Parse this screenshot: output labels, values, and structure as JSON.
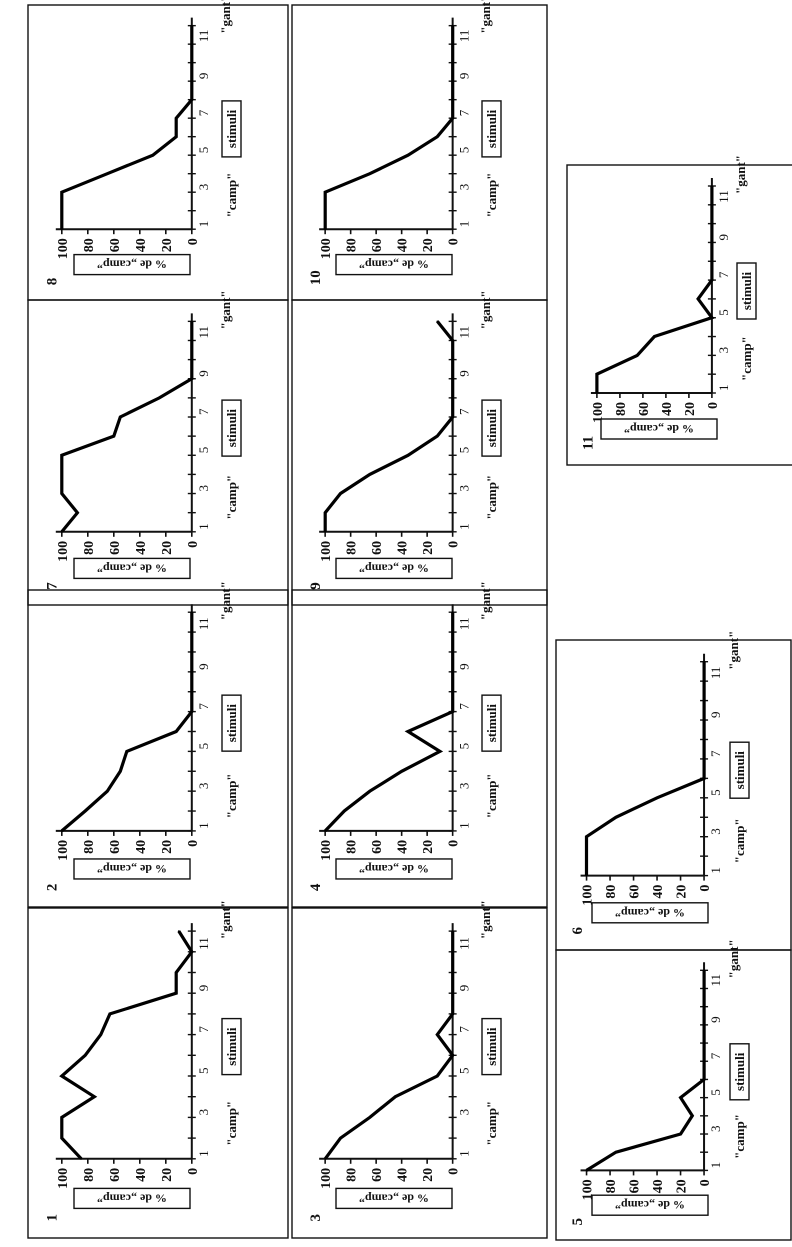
{
  "common": {
    "y_label": "% de „camp”",
    "x_label": "stimuli",
    "left_anchor": "\"camp\"",
    "right_anchor": "\"gant\"",
    "x_ticks": [
      "1",
      "3",
      "5",
      "7",
      "9",
      "11"
    ],
    "y_ticks": [
      "0",
      "20",
      "40",
      "60",
      "80",
      "100"
    ]
  },
  "chart_data": [
    {
      "type": "line",
      "panel": "1",
      "x": [
        1,
        2,
        3,
        4,
        5,
        6,
        7,
        8,
        9,
        10,
        11,
        12
      ],
      "y": [
        85,
        100,
        100,
        75,
        100,
        82,
        70,
        63,
        12,
        12,
        0,
        10
      ],
      "ylim": [
        0,
        100
      ],
      "xlim": [
        1,
        12
      ]
    },
    {
      "type": "line",
      "panel": "2",
      "x": [
        1,
        2,
        3,
        4,
        5,
        6,
        7,
        8,
        9,
        10,
        11,
        12
      ],
      "y": [
        100,
        82,
        65,
        55,
        50,
        12,
        0,
        0,
        0,
        0,
        0,
        0
      ],
      "ylim": [
        0,
        100
      ],
      "xlim": [
        1,
        12
      ]
    },
    {
      "type": "line",
      "panel": "3",
      "x": [
        1,
        2,
        3,
        4,
        5,
        6,
        7,
        8,
        9,
        10,
        11,
        12
      ],
      "y": [
        100,
        88,
        65,
        45,
        12,
        0,
        12,
        0,
        0,
        0,
        0,
        0
      ],
      "ylim": [
        0,
        100
      ],
      "xlim": [
        1,
        12
      ]
    },
    {
      "type": "line",
      "panel": "4",
      "x": [
        1,
        2,
        3,
        4,
        5,
        6,
        7,
        8,
        9,
        10,
        11,
        12
      ],
      "y": [
        100,
        85,
        65,
        40,
        10,
        35,
        0,
        0,
        0,
        0,
        0,
        0
      ],
      "ylim": [
        0,
        100
      ],
      "xlim": [
        1,
        12
      ]
    },
    {
      "type": "line",
      "panel": "5",
      "x": [
        1,
        2,
        3,
        4,
        5,
        6,
        7,
        8,
        9,
        10,
        11,
        12
      ],
      "y": [
        100,
        75,
        20,
        10,
        20,
        0,
        0,
        0,
        0,
        0,
        0,
        0
      ],
      "ylim": [
        0,
        100
      ],
      "xlim": [
        1,
        12
      ]
    },
    {
      "type": "line",
      "panel": "6",
      "x": [
        1,
        2,
        3,
        4,
        5,
        6,
        7,
        8,
        9,
        10,
        11,
        12
      ],
      "y": [
        100,
        100,
        100,
        75,
        40,
        0,
        0,
        0,
        0,
        0,
        0,
        0
      ],
      "ylim": [
        0,
        100
      ],
      "xlim": [
        1,
        12
      ]
    },
    {
      "type": "line",
      "panel": "7",
      "x": [
        1,
        2,
        3,
        4,
        5,
        6,
        7,
        8,
        9,
        10,
        11,
        12
      ],
      "y": [
        100,
        88,
        100,
        100,
        100,
        60,
        55,
        25,
        0,
        0,
        0,
        0
      ],
      "ylim": [
        0,
        100
      ],
      "xlim": [
        1,
        12
      ]
    },
    {
      "type": "line",
      "panel": "8",
      "x": [
        1,
        2,
        3,
        4,
        5,
        6,
        7,
        8,
        9,
        10,
        11,
        12
      ],
      "y": [
        100,
        100,
        100,
        65,
        30,
        12,
        12,
        0,
        0,
        0,
        0,
        0
      ],
      "ylim": [
        0,
        100
      ],
      "xlim": [
        1,
        12
      ]
    },
    {
      "type": "line",
      "panel": "9",
      "x": [
        1,
        2,
        3,
        4,
        5,
        6,
        7,
        8,
        9,
        10,
        11,
        12
      ],
      "y": [
        100,
        100,
        88,
        65,
        35,
        12,
        0,
        0,
        0,
        0,
        0,
        12
      ],
      "ylim": [
        0,
        100
      ],
      "xlim": [
        1,
        12
      ]
    },
    {
      "type": "line",
      "panel": "10",
      "x": [
        1,
        2,
        3,
        4,
        5,
        6,
        7,
        8,
        9,
        10,
        11,
        12
      ],
      "y": [
        100,
        100,
        100,
        65,
        35,
        12,
        0,
        0,
        0,
        0,
        0,
        0
      ],
      "ylim": [
        0,
        100
      ],
      "xlim": [
        1,
        12
      ]
    },
    {
      "type": "line",
      "panel": "11",
      "x": [
        1,
        2,
        3,
        4,
        5,
        6,
        7,
        8,
        9,
        10,
        11,
        12
      ],
      "y": [
        100,
        100,
        65,
        50,
        0,
        12,
        0,
        0,
        0,
        0,
        0,
        0
      ],
      "ylim": [
        0,
        100
      ],
      "xlim": [
        1,
        12
      ]
    }
  ]
}
